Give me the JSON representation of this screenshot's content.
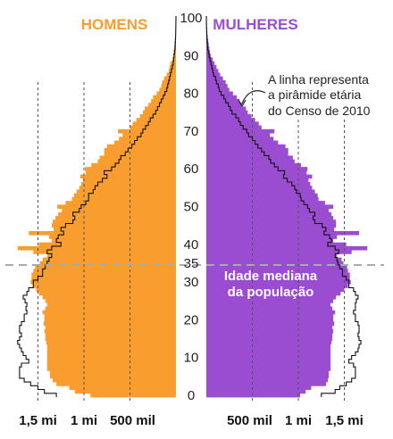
{
  "chart_data": {
    "type": "bar",
    "orientation": "horizontal-population-pyramid",
    "age_axis": {
      "min": 0,
      "max": 100,
      "tick_labels": [
        "0",
        "10",
        "20",
        "30",
        "35",
        "40",
        "50",
        "60",
        "70",
        "80",
        "90",
        "100"
      ]
    },
    "population_axis": {
      "max_millions": 1.75,
      "gridlines_millions": [
        0.5,
        1.0,
        1.5
      ],
      "left_tick_labels": [
        "1,5 mi",
        "1 mi",
        "500 mil"
      ],
      "right_tick_labels": [
        "500 mil",
        "1 mi",
        "1,5 mi"
      ]
    },
    "series": [
      {
        "name": "HOMENS",
        "color": "#f99d2f",
        "values_millions": [
          0.93,
          1.1,
          1.16,
          1.3,
          1.34,
          1.37,
          1.37,
          1.4,
          1.4,
          1.4,
          1.4,
          1.4,
          1.4,
          1.4,
          1.41,
          1.42,
          1.42,
          1.43,
          1.42,
          1.44,
          1.43,
          1.43,
          1.45,
          1.42,
          1.4,
          1.42,
          1.45,
          1.49,
          1.52,
          1.55,
          1.58,
          1.57,
          1.57,
          1.55,
          1.53,
          1.48,
          1.45,
          1.4,
          1.55,
          1.72,
          1.49,
          1.35,
          1.38,
          1.6,
          1.33,
          1.35,
          1.34,
          1.31,
          1.28,
          1.24,
          1.29,
          1.2,
          1.13,
          1.11,
          1.08,
          1.05,
          1.03,
          1.01,
          1.04,
          0.98,
          0.99,
          0.92,
          0.85,
          0.83,
          0.78,
          0.78,
          0.75,
          0.67,
          0.62,
          0.58,
          0.63,
          0.5,
          0.47,
          0.43,
          0.39,
          0.36,
          0.34,
          0.3,
          0.27,
          0.25,
          0.21,
          0.18,
          0.16,
          0.15,
          0.13,
          0.1,
          0.08,
          0.07,
          0.06,
          0.04,
          0.03,
          0.026,
          0.021,
          0.016,
          0.012,
          0.009,
          0.006,
          0.004,
          0.003,
          0.002,
          0.001
        ]
      },
      {
        "name": "MULHERES",
        "color": "#9b4dd2",
        "values_millions": [
          1.02,
          1.08,
          1.14,
          1.3,
          1.32,
          1.33,
          1.33,
          1.35,
          1.35,
          1.35,
          1.35,
          1.35,
          1.35,
          1.35,
          1.36,
          1.37,
          1.37,
          1.38,
          1.37,
          1.39,
          1.38,
          1.38,
          1.4,
          1.37,
          1.35,
          1.38,
          1.41,
          1.46,
          1.5,
          1.54,
          1.57,
          1.56,
          1.56,
          1.54,
          1.53,
          1.49,
          1.47,
          1.42,
          1.58,
          1.75,
          1.52,
          1.38,
          1.42,
          1.66,
          1.39,
          1.41,
          1.41,
          1.38,
          1.36,
          1.33,
          1.38,
          1.29,
          1.22,
          1.21,
          1.18,
          1.15,
          1.13,
          1.11,
          1.15,
          1.09,
          1.1,
          1.03,
          0.96,
          0.94,
          0.89,
          0.89,
          0.86,
          0.78,
          0.73,
          0.69,
          0.74,
          0.6,
          0.57,
          0.53,
          0.49,
          0.45,
          0.43,
          0.39,
          0.36,
          0.33,
          0.29,
          0.25,
          0.23,
          0.21,
          0.18,
          0.15,
          0.13,
          0.11,
          0.09,
          0.07,
          0.05,
          0.04,
          0.033,
          0.026,
          0.02,
          0.015,
          0.011,
          0.008,
          0.005,
          0.003,
          0.002
        ]
      },
      {
        "name": "Censo 2010 homens",
        "values_millions": [
          1.3,
          1.43,
          1.5,
          1.58,
          1.65,
          1.7,
          1.7,
          1.7,
          1.68,
          1.6,
          1.63,
          1.66,
          1.68,
          1.7,
          1.72,
          1.7,
          1.68,
          1.7,
          1.7,
          1.68,
          1.65,
          1.65,
          1.62,
          1.63,
          1.62,
          1.64,
          1.66,
          1.62,
          1.6,
          1.55,
          1.55,
          1.5,
          1.45,
          1.45,
          1.42,
          1.4,
          1.38,
          1.35,
          1.4,
          1.35,
          1.25,
          1.3,
          1.28,
          1.22,
          1.25,
          1.2,
          1.12,
          1.1,
          1.12,
          1.05,
          1.03,
          0.98,
          0.95,
          0.95,
          0.9,
          0.88,
          0.85,
          0.8,
          0.75,
          0.78,
          0.7,
          0.66,
          0.62,
          0.6,
          0.55,
          0.52,
          0.48,
          0.45,
          0.42,
          0.38,
          0.36,
          0.33,
          0.3,
          0.28,
          0.25,
          0.22,
          0.2,
          0.18,
          0.16,
          0.14,
          0.12,
          0.1,
          0.09,
          0.08,
          0.07,
          0.06,
          0.05,
          0.04,
          0.03,
          0.025,
          0.02,
          0.015,
          0.01,
          0.008,
          0.006,
          0.004,
          0.003,
          0.002,
          0.001,
          0.0005,
          0.0002
        ]
      },
      {
        "name": "Censo 2010 mulheres",
        "values_millions": [
          1.25,
          1.4,
          1.45,
          1.52,
          1.58,
          1.62,
          1.62,
          1.62,
          1.6,
          1.55,
          1.58,
          1.62,
          1.65,
          1.66,
          1.68,
          1.66,
          1.65,
          1.66,
          1.66,
          1.65,
          1.62,
          1.62,
          1.6,
          1.62,
          1.62,
          1.63,
          1.65,
          1.62,
          1.6,
          1.55,
          1.55,
          1.52,
          1.48,
          1.48,
          1.45,
          1.43,
          1.42,
          1.4,
          1.44,
          1.4,
          1.32,
          1.36,
          1.34,
          1.28,
          1.3,
          1.26,
          1.18,
          1.16,
          1.18,
          1.12,
          1.1,
          1.06,
          1.03,
          1.02,
          0.98,
          0.96,
          0.93,
          0.88,
          0.84,
          0.85,
          0.78,
          0.74,
          0.7,
          0.68,
          0.63,
          0.6,
          0.56,
          0.53,
          0.5,
          0.46,
          0.44,
          0.4,
          0.37,
          0.35,
          0.32,
          0.28,
          0.26,
          0.24,
          0.21,
          0.19,
          0.16,
          0.14,
          0.13,
          0.11,
          0.1,
          0.08,
          0.07,
          0.06,
          0.05,
          0.04,
          0.03,
          0.022,
          0.016,
          0.012,
          0.009,
          0.006,
          0.004,
          0.003,
          0.002,
          0.001,
          0.0005
        ]
      }
    ],
    "median_age": 35,
    "annotations": {
      "median_label_1": "Idade mediana",
      "median_label_2": "da população",
      "census_note_1": "A linha representa",
      "census_note_2": "a pirâmide etária",
      "census_note_3": "do Censo de 2010"
    },
    "colors": {
      "men": "#f99d2f",
      "women": "#9b4dd2",
      "outline": "#111111",
      "grid": "#555555",
      "median_line": "#aaaaaa"
    }
  }
}
